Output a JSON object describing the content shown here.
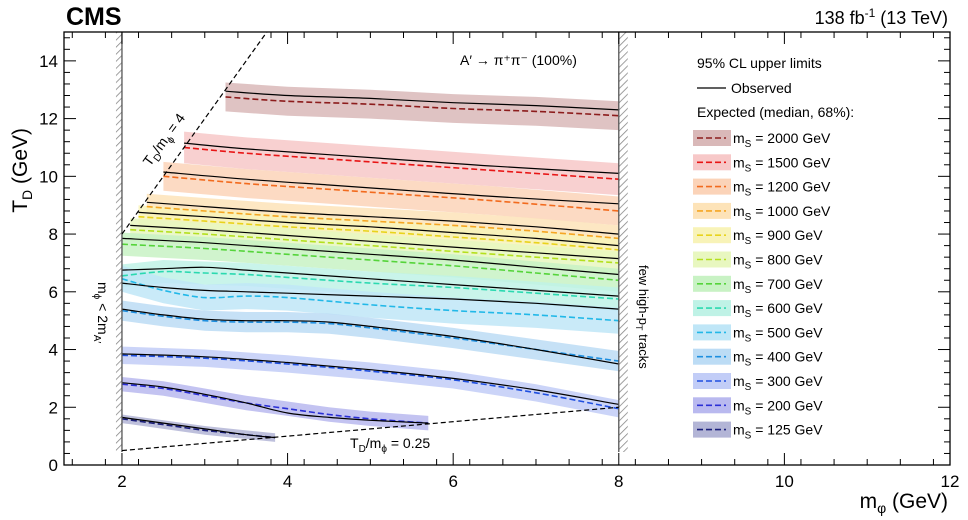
{
  "chart_data": {
    "type": "line",
    "header": {
      "experiment": "CMS",
      "lumi_prefix": "138 fb",
      "lumi_sup": "-1",
      "lumi_suffix": " (13 TeV)"
    },
    "xlabel": {
      "main": "m",
      "sub": "φ",
      "unit": " (GeV)"
    },
    "ylabel": {
      "main": "T",
      "sub": "D",
      "unit": " (GeV)"
    },
    "xlim": [
      1.3,
      12
    ],
    "ylim": [
      0,
      15
    ],
    "xticks": [
      2,
      4,
      6,
      8,
      10,
      12
    ],
    "yticks": [
      0,
      2,
      4,
      6,
      8,
      10,
      12,
      14
    ],
    "grid": false,
    "legend": {
      "position": "right",
      "header1": "95% CL upper limits",
      "observed_label": "Observed",
      "header2": "Expected (median, 68%):"
    },
    "annotations": {
      "decay": "A′ → π⁺π⁻ (100%)",
      "upper_line": "T_D/m_ϕ = 4",
      "lower_line": "T_D/m_ϕ = 0.25",
      "left_region": "m_ϕ < 2m_A′",
      "right_region": "few high-p_T tracks"
    },
    "region_boundaries": {
      "left_x": 2,
      "right_x": 8
    },
    "series": [
      {
        "name": "m_S = 2000 GeV",
        "label_main": "m",
        "label_sub": "S",
        "label_rest": " = 2000 GeV",
        "color": "#8c1c1c",
        "band_color": "#d9b8b8",
        "x": [
          3.25,
          4,
          5,
          6,
          7,
          8
        ],
        "observed": [
          12.95,
          12.8,
          12.7,
          12.55,
          12.45,
          12.3
        ],
        "expected": [
          12.75,
          12.6,
          12.5,
          12.35,
          12.25,
          12.1
        ],
        "band_halfwidth": 0.5
      },
      {
        "name": "m_S = 1500 GeV",
        "label_main": "m",
        "label_sub": "S",
        "label_rest": " = 1500 GeV",
        "color": "#e81515",
        "band_color": "#f7c8c8",
        "x": [
          2.75,
          3.5,
          4.5,
          5.5,
          6.5,
          8
        ],
        "observed": [
          11.15,
          10.95,
          10.75,
          10.55,
          10.35,
          10.1
        ],
        "expected": [
          11.0,
          10.8,
          10.6,
          10.4,
          10.2,
          9.9
        ],
        "band_halfwidth": 0.55
      },
      {
        "name": "m_S = 1200 GeV",
        "label_main": "m",
        "label_sub": "S",
        "label_rest": " = 1200 GeV",
        "color": "#f26b1e",
        "band_color": "#fbd3b8",
        "x": [
          2.5,
          3.5,
          4.5,
          5.5,
          6.5,
          8
        ],
        "observed": [
          10.15,
          9.9,
          9.7,
          9.5,
          9.3,
          9.05
        ],
        "expected": [
          10.0,
          9.75,
          9.55,
          9.35,
          9.15,
          8.8
        ],
        "band_halfwidth": 0.5
      },
      {
        "name": "m_S = 1000 GeV",
        "label_main": "m",
        "label_sub": "S",
        "label_rest": " = 1000 GeV",
        "color": "#f5a623",
        "band_color": "#fde3b8",
        "x": [
          2.3,
          3,
          4,
          5,
          6,
          7,
          8
        ],
        "observed": [
          9.1,
          8.95,
          8.75,
          8.6,
          8.45,
          8.25,
          8.0
        ],
        "expected": [
          8.95,
          8.8,
          8.6,
          8.45,
          8.3,
          8.1,
          7.85
        ],
        "band_halfwidth": 0.45
      },
      {
        "name": "m_S = 900 GeV",
        "label_main": "m",
        "label_sub": "S",
        "label_rest": " = 900 GeV",
        "color": "#e8d31b",
        "band_color": "#f8f3b8",
        "x": [
          2.2,
          3,
          4,
          5,
          6,
          7,
          8
        ],
        "observed": [
          8.75,
          8.6,
          8.4,
          8.25,
          8.05,
          7.85,
          7.6
        ],
        "expected": [
          8.6,
          8.45,
          8.25,
          8.1,
          7.9,
          7.7,
          7.45
        ],
        "band_halfwidth": 0.4
      },
      {
        "name": "m_S = 800 GeV",
        "label_main": "m",
        "label_sub": "S",
        "label_rest": " = 800 GeV",
        "color": "#b4e01e",
        "band_color": "#e8f7c0",
        "x": [
          2.1,
          3,
          4,
          5,
          6,
          7,
          8
        ],
        "observed": [
          8.3,
          8.15,
          7.95,
          7.75,
          7.55,
          7.35,
          7.15
        ],
        "expected": [
          8.15,
          8.0,
          7.8,
          7.6,
          7.4,
          7.2,
          7.0
        ],
        "band_halfwidth": 0.4
      },
      {
        "name": "m_S = 700 GeV",
        "label_main": "m",
        "label_sub": "S",
        "label_rest": " = 700 GeV",
        "color": "#55d43a",
        "band_color": "#c8f2c4",
        "x": [
          2,
          3,
          4,
          5,
          6,
          7,
          8
        ],
        "observed": [
          7.85,
          7.7,
          7.5,
          7.3,
          7.1,
          6.85,
          6.6
        ],
        "expected": [
          7.65,
          7.5,
          7.3,
          7.1,
          6.9,
          6.65,
          6.4
        ],
        "band_halfwidth": 0.4
      },
      {
        "name": "m_S = 600 GeV",
        "label_main": "m",
        "label_sub": "S",
        "label_rest": " = 600 GeV",
        "color": "#2bd9b0",
        "band_color": "#bff2e6",
        "x": [
          2,
          2.5,
          3,
          3.5,
          4,
          5,
          6,
          7,
          8
        ],
        "observed": [
          6.75,
          6.8,
          6.85,
          6.75,
          6.65,
          6.45,
          6.25,
          6.05,
          5.85
        ],
        "expected": [
          6.55,
          6.7,
          6.65,
          6.6,
          6.5,
          6.3,
          6.15,
          5.95,
          5.75
        ],
        "band_halfwidth": 0.4
      },
      {
        "name": "m_S = 500 GeV",
        "label_main": "m",
        "label_sub": "S",
        "label_rest": " = 500 GeV",
        "color": "#22b8e8",
        "band_color": "#bfe6f7",
        "x": [
          2,
          2.5,
          3,
          3.5,
          4,
          5,
          6,
          7,
          8
        ],
        "observed": [
          6.3,
          6.15,
          6.05,
          6.0,
          5.95,
          5.85,
          5.75,
          5.6,
          5.4
        ],
        "expected": [
          6.45,
          6.05,
          5.8,
          5.85,
          5.8,
          5.55,
          5.35,
          5.2,
          5.0
        ],
        "band_halfwidth": 0.45
      },
      {
        "name": "m_S = 400 GeV",
        "label_main": "m",
        "label_sub": "S",
        "label_rest": " = 400 GeV",
        "color": "#1e8fe0",
        "band_color": "#bcdcf5",
        "x": [
          2,
          2.5,
          3,
          3.5,
          4,
          4.5,
          5,
          6,
          7,
          8
        ],
        "observed": [
          5.4,
          5.2,
          5.05,
          5.0,
          5.0,
          4.95,
          4.8,
          4.45,
          4.0,
          3.5
        ],
        "expected": [
          5.35,
          5.15,
          5.0,
          4.95,
          4.95,
          4.9,
          4.75,
          4.4,
          4.0,
          3.6
        ],
        "band_halfwidth": 0.35
      },
      {
        "name": "m_S = 300 GeV",
        "label_main": "m",
        "label_sub": "S",
        "label_rest": " = 300 GeV",
        "color": "#1f4fe0",
        "band_color": "#c2cdf7",
        "x": [
          2,
          3,
          4,
          5,
          6,
          7,
          8
        ],
        "observed": [
          3.85,
          3.75,
          3.55,
          3.3,
          3.0,
          2.6,
          2.1
        ],
        "expected": [
          3.8,
          3.7,
          3.5,
          3.25,
          2.95,
          2.5,
          1.95
        ],
        "band_halfwidth": 0.3
      },
      {
        "name": "m_S = 200 GeV",
        "label_main": "m",
        "label_sub": "S",
        "label_rest": " = 200 GeV",
        "color": "#2a2fd6",
        "band_color": "#b9b9ef",
        "x": [
          2,
          2.5,
          3,
          3.5,
          4,
          4.5,
          5,
          5.7
        ],
        "observed": [
          2.85,
          2.7,
          2.45,
          2.15,
          1.8,
          1.65,
          1.55,
          1.45
        ],
        "expected": [
          2.8,
          2.65,
          2.4,
          2.15,
          1.95,
          1.75,
          1.6,
          1.45
        ],
        "band_halfwidth": 0.25
      },
      {
        "name": "m_S = 125 GeV",
        "label_main": "m",
        "label_sub": "S",
        "label_rest": " = 125 GeV",
        "color": "#1b1f7a",
        "band_color": "#b3b5d6",
        "x": [
          2,
          2.5,
          3,
          3.5,
          3.85
        ],
        "observed": [
          1.65,
          1.45,
          1.25,
          1.05,
          0.95
        ],
        "expected": [
          1.6,
          1.4,
          1.2,
          1.05,
          0.95
        ],
        "band_halfwidth": 0.15
      }
    ]
  }
}
